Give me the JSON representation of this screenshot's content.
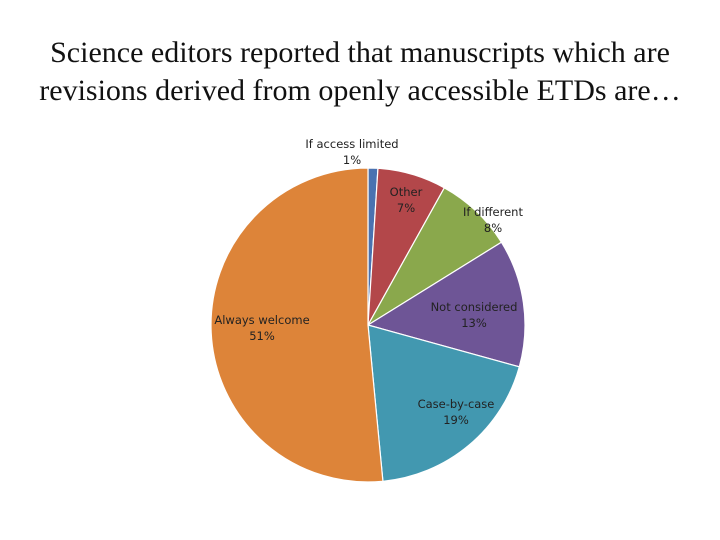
{
  "title_lines": [
    "Science editors reported that manuscripts which are",
    "revisions derived from openly accessible ETDs are…"
  ],
  "chart_data": {
    "type": "pie",
    "title": "Science editors reported that manuscripts which are revisions derived from openly accessible ETDs are…",
    "slices": [
      {
        "label": "If access limited",
        "value": 1,
        "value_label": "1%",
        "color": "#4a72b0"
      },
      {
        "label": "Other",
        "value": 7,
        "value_label": "7%",
        "color": "#b3474a"
      },
      {
        "label": "If different",
        "value": 8,
        "value_label": "8%",
        "color": "#8aa84c"
      },
      {
        "label": "Not considered",
        "value": 13,
        "value_label": "13%",
        "color": "#6e5596"
      },
      {
        "label": "Case-by-case",
        "value": 19,
        "value_label": "19%",
        "color": "#4298b0"
      },
      {
        "label": "Always welcome",
        "value": 51,
        "value_label": "51%",
        "color": "#dd8439"
      }
    ],
    "start_angle_deg": 0,
    "direction": "clockwise",
    "labels": "category name and percentage per slice"
  }
}
